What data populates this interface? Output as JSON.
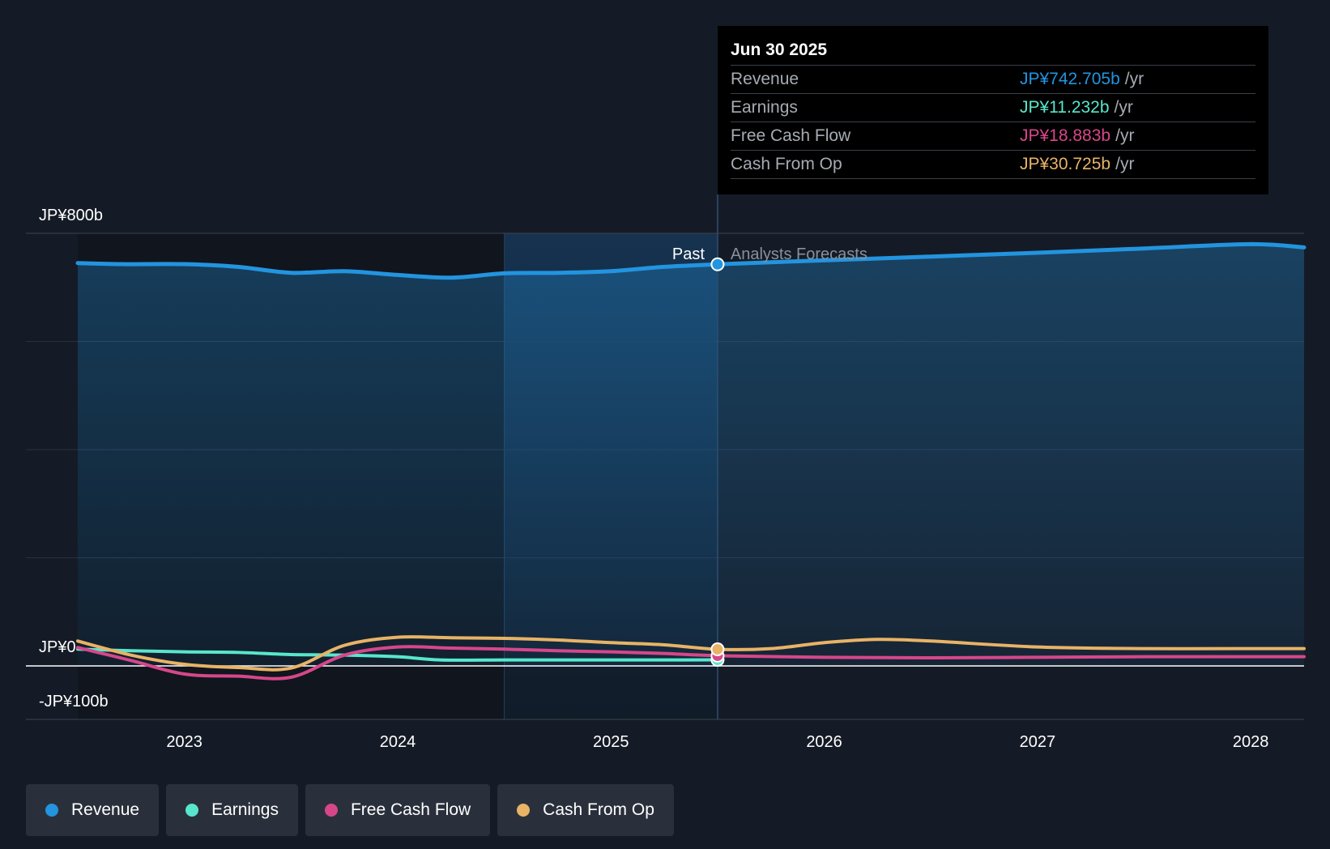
{
  "chart_data": {
    "type": "line",
    "y_ticks": [
      {
        "value": 800,
        "label": "JP¥800b"
      },
      {
        "value": 0,
        "label": "JP¥0"
      },
      {
        "value": -100,
        "label": "-JP¥100b"
      }
    ],
    "ylim": [
      -100,
      800
    ],
    "x_ticks": [
      "2023",
      "2024",
      "2025",
      "2026",
      "2027",
      "2028"
    ],
    "xlim": [
      2022.5,
      2028.25
    ],
    "grid": true,
    "past_label": "Past",
    "forecast_label": "Analysts Forecasts",
    "divider_x": 2025.5,
    "series": [
      {
        "name": "Revenue",
        "color": "#2394df",
        "x": [
          2022.5,
          2022.7,
          2023.0,
          2023.25,
          2023.5,
          2023.75,
          2024.0,
          2024.25,
          2024.5,
          2024.75,
          2025.0,
          2025.25,
          2025.5,
          2026.0,
          2026.5,
          2027.0,
          2027.5,
          2028.0,
          2028.25
        ],
        "y": [
          745,
          743,
          743,
          738,
          727,
          730,
          723,
          718,
          726,
          727,
          730,
          738,
          742.705,
          750,
          757,
          764,
          772,
          780,
          774
        ]
      },
      {
        "name": "Earnings",
        "color": "#58e6cc",
        "x": [
          2022.5,
          2022.75,
          2023.0,
          2023.25,
          2023.5,
          2023.75,
          2024.0,
          2024.2,
          2024.5,
          2024.75,
          2025.0,
          2025.25,
          2025.5
        ],
        "y": [
          31,
          28,
          26,
          25,
          21,
          20,
          17,
          11,
          11,
          11,
          11,
          11,
          11.232
        ]
      },
      {
        "name": "Free Cash Flow",
        "color": "#d6478a",
        "x": [
          2022.5,
          2022.75,
          2023.0,
          2023.25,
          2023.5,
          2023.75,
          2024.0,
          2024.25,
          2024.5,
          2024.75,
          2025.0,
          2025.25,
          2025.5,
          2026.0,
          2026.5,
          2027.0,
          2027.5,
          2028.0,
          2028.25
        ],
        "y": [
          34,
          10,
          -15,
          -19,
          -21,
          20,
          35,
          33,
          31,
          28,
          26,
          23,
          18.883,
          16,
          15,
          16,
          17,
          17,
          17
        ]
      },
      {
        "name": "Cash From Op",
        "color": "#e8b366",
        "x": [
          2022.5,
          2022.75,
          2023.0,
          2023.25,
          2023.5,
          2023.75,
          2024.0,
          2024.25,
          2024.5,
          2024.75,
          2025.0,
          2025.25,
          2025.5,
          2025.75,
          2026.0,
          2026.25,
          2026.5,
          2027.0,
          2027.5,
          2028.0,
          2028.25
        ],
        "y": [
          46,
          20,
          3,
          -3,
          -4,
          38,
          53,
          52,
          51,
          48,
          43,
          39,
          30.725,
          32,
          43,
          49,
          46,
          35,
          32,
          32,
          32
        ]
      }
    ],
    "tooltip": {
      "date": "Jun 30 2025",
      "rows": [
        {
          "name": "Revenue",
          "value": "JP¥742.705b",
          "unit": "/yr",
          "color": "#2394df"
        },
        {
          "name": "Earnings",
          "value": "JP¥11.232b",
          "unit": "/yr",
          "color": "#58e6cc"
        },
        {
          "name": "Free Cash Flow",
          "value": "JP¥18.883b",
          "unit": "/yr",
          "color": "#d6478a"
        },
        {
          "name": "Cash From Op",
          "value": "JP¥30.725b",
          "unit": "/yr",
          "color": "#e8b366"
        }
      ]
    },
    "legend": [
      {
        "name": "Revenue",
        "color": "#2394df"
      },
      {
        "name": "Earnings",
        "color": "#58e6cc"
      },
      {
        "name": "Free Cash Flow",
        "color": "#d6478a"
      },
      {
        "name": "Cash From Op",
        "color": "#e8b366"
      }
    ]
  }
}
